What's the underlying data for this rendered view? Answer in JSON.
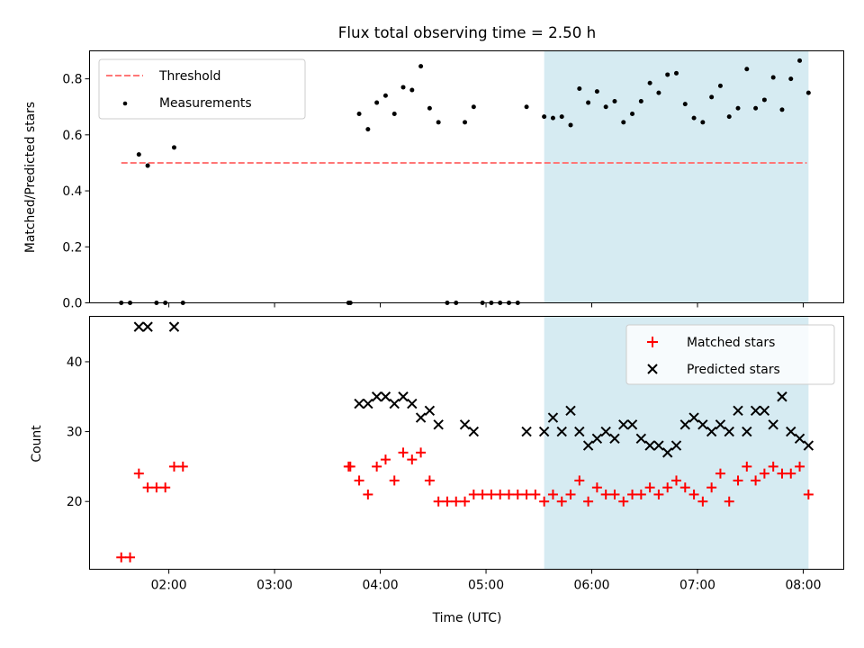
{
  "title": "Flux total observing time = 2.50 h",
  "colors": {
    "threshold": "#ff7777",
    "measurement": "#000000",
    "matched": "#ff0000",
    "predicted": "#000000",
    "shade": "#add8e6"
  },
  "chart_data": [
    {
      "type": "scatter",
      "panel": "top",
      "ylabel": "Matched/Predicted stars",
      "ylim": [
        0,
        0.9
      ],
      "yticks": [
        "0.0",
        "0.2",
        "0.4",
        "0.6",
        "0.8"
      ],
      "shaded_region": [
        "05:33",
        "08:03"
      ],
      "legend_position": "upper left",
      "threshold": {
        "name": "Threshold",
        "value": 0.5,
        "x_range": [
          "01:33",
          "08:02"
        ]
      },
      "series": [
        {
          "name": "Measurements",
          "points": [
            [
              "01:33",
              0.0
            ],
            [
              "01:38",
              0.0
            ],
            [
              "01:43",
              0.53
            ],
            [
              "01:48",
              0.49
            ],
            [
              "01:53",
              0.0
            ],
            [
              "01:58",
              0.0
            ],
            [
              "02:03",
              0.555
            ],
            [
              "02:08",
              0.0
            ],
            [
              "03:42",
              0.0
            ],
            [
              "03:43",
              0.0
            ],
            [
              "03:48",
              0.675
            ],
            [
              "03:53",
              0.62
            ],
            [
              "03:58",
              0.715
            ],
            [
              "04:03",
              0.74
            ],
            [
              "04:08",
              0.675
            ],
            [
              "04:13",
              0.77
            ],
            [
              "04:18",
              0.76
            ],
            [
              "04:23",
              0.845
            ],
            [
              "04:28",
              0.695
            ],
            [
              "04:33",
              0.645
            ],
            [
              "04:38",
              0.0
            ],
            [
              "04:43",
              0.0
            ],
            [
              "04:48",
              0.645
            ],
            [
              "04:53",
              0.7
            ],
            [
              "04:58",
              0.0
            ],
            [
              "05:03",
              0.0
            ],
            [
              "05:08",
              0.0
            ],
            [
              "05:13",
              0.0
            ],
            [
              "05:18",
              0.0
            ],
            [
              "05:23",
              0.7
            ],
            [
              "05:33",
              0.665
            ],
            [
              "05:38",
              0.66
            ],
            [
              "05:43",
              0.665
            ],
            [
              "05:48",
              0.635
            ],
            [
              "05:53",
              0.765
            ],
            [
              "05:58",
              0.715
            ],
            [
              "06:03",
              0.755
            ],
            [
              "06:08",
              0.7
            ],
            [
              "06:13",
              0.72
            ],
            [
              "06:18",
              0.645
            ],
            [
              "06:23",
              0.675
            ],
            [
              "06:28",
              0.72
            ],
            [
              "06:33",
              0.785
            ],
            [
              "06:38",
              0.75
            ],
            [
              "06:43",
              0.815
            ],
            [
              "06:48",
              0.82
            ],
            [
              "06:53",
              0.71
            ],
            [
              "06:58",
              0.66
            ],
            [
              "07:03",
              0.645
            ],
            [
              "07:08",
              0.735
            ],
            [
              "07:13",
              0.775
            ],
            [
              "07:18",
              0.665
            ],
            [
              "07:23",
              0.695
            ],
            [
              "07:28",
              0.835
            ],
            [
              "07:33",
              0.695
            ],
            [
              "07:38",
              0.725
            ],
            [
              "07:43",
              0.805
            ],
            [
              "07:48",
              0.69
            ],
            [
              "07:53",
              0.8
            ],
            [
              "07:58",
              0.865
            ],
            [
              "08:03",
              0.75
            ]
          ]
        }
      ]
    },
    {
      "type": "scatter",
      "panel": "bottom",
      "xlabel": "Time (UTC)",
      "ylabel": "Count",
      "ylim": [
        10.3,
        46.5
      ],
      "yticks": [
        "20",
        "30",
        "40"
      ],
      "xticks": [
        "02:00",
        "03:00",
        "04:00",
        "05:00",
        "06:00",
        "07:00",
        "08:00"
      ],
      "xlim": [
        "01:15",
        "08:23"
      ],
      "shaded_region": [
        "05:33",
        "08:03"
      ],
      "legend_position": "upper right",
      "series": [
        {
          "name": "Matched stars",
          "marker": "plus",
          "points": [
            [
              "01:33",
              12
            ],
            [
              "01:38",
              12
            ],
            [
              "01:43",
              24
            ],
            [
              "01:48",
              22
            ],
            [
              "01:53",
              22
            ],
            [
              "01:58",
              22
            ],
            [
              "02:03",
              25
            ],
            [
              "02:08",
              25
            ],
            [
              "03:42",
              25
            ],
            [
              "03:43",
              25
            ],
            [
              "03:48",
              23
            ],
            [
              "03:53",
              21
            ],
            [
              "03:58",
              25
            ],
            [
              "04:03",
              26
            ],
            [
              "04:08",
              23
            ],
            [
              "04:13",
              27
            ],
            [
              "04:18",
              26
            ],
            [
              "04:23",
              27
            ],
            [
              "04:28",
              23
            ],
            [
              "04:33",
              20
            ],
            [
              "04:38",
              20
            ],
            [
              "04:43",
              20
            ],
            [
              "04:48",
              20
            ],
            [
              "04:53",
              21
            ],
            [
              "04:58",
              21
            ],
            [
              "05:03",
              21
            ],
            [
              "05:08",
              21
            ],
            [
              "05:13",
              21
            ],
            [
              "05:18",
              21
            ],
            [
              "05:23",
              21
            ],
            [
              "05:28",
              21
            ],
            [
              "05:33",
              20
            ],
            [
              "05:38",
              21
            ],
            [
              "05:43",
              20
            ],
            [
              "05:48",
              21
            ],
            [
              "05:53",
              23
            ],
            [
              "05:58",
              20
            ],
            [
              "06:03",
              22
            ],
            [
              "06:08",
              21
            ],
            [
              "06:13",
              21
            ],
            [
              "06:18",
              20
            ],
            [
              "06:23",
              21
            ],
            [
              "06:28",
              21
            ],
            [
              "06:33",
              22
            ],
            [
              "06:38",
              21
            ],
            [
              "06:43",
              22
            ],
            [
              "06:48",
              23
            ],
            [
              "06:53",
              22
            ],
            [
              "06:58",
              21
            ],
            [
              "07:03",
              20
            ],
            [
              "07:08",
              22
            ],
            [
              "07:13",
              24
            ],
            [
              "07:18",
              20
            ],
            [
              "07:23",
              23
            ],
            [
              "07:28",
              25
            ],
            [
              "07:33",
              23
            ],
            [
              "07:38",
              24
            ],
            [
              "07:43",
              25
            ],
            [
              "07:48",
              24
            ],
            [
              "07:53",
              24
            ],
            [
              "07:58",
              25
            ],
            [
              "08:03",
              21
            ]
          ]
        },
        {
          "name": "Predicted stars",
          "marker": "x",
          "points": [
            [
              "01:43",
              45
            ],
            [
              "01:48",
              45
            ],
            [
              "02:03",
              45
            ],
            [
              "03:48",
              34
            ],
            [
              "03:53",
              34
            ],
            [
              "03:58",
              35
            ],
            [
              "04:03",
              35
            ],
            [
              "04:08",
              34
            ],
            [
              "04:13",
              35
            ],
            [
              "04:18",
              34
            ],
            [
              "04:23",
              32
            ],
            [
              "04:28",
              33
            ],
            [
              "04:33",
              31
            ],
            [
              "04:48",
              31
            ],
            [
              "04:53",
              30
            ],
            [
              "05:23",
              30
            ],
            [
              "05:33",
              30
            ],
            [
              "05:38",
              32
            ],
            [
              "05:43",
              30
            ],
            [
              "05:48",
              33
            ],
            [
              "05:53",
              30
            ],
            [
              "05:58",
              28
            ],
            [
              "06:03",
              29
            ],
            [
              "06:08",
              30
            ],
            [
              "06:13",
              29
            ],
            [
              "06:18",
              31
            ],
            [
              "06:23",
              31
            ],
            [
              "06:28",
              29
            ],
            [
              "06:33",
              28
            ],
            [
              "06:38",
              28
            ],
            [
              "06:43",
              27
            ],
            [
              "06:48",
              28
            ],
            [
              "06:53",
              31
            ],
            [
              "06:58",
              32
            ],
            [
              "07:03",
              31
            ],
            [
              "07:08",
              30
            ],
            [
              "07:13",
              31
            ],
            [
              "07:18",
              30
            ],
            [
              "07:23",
              33
            ],
            [
              "07:28",
              30
            ],
            [
              "07:33",
              33
            ],
            [
              "07:38",
              33
            ],
            [
              "07:43",
              31
            ],
            [
              "07:48",
              35
            ],
            [
              "07:53",
              30
            ],
            [
              "07:58",
              29
            ],
            [
              "08:03",
              28
            ]
          ]
        }
      ]
    }
  ]
}
